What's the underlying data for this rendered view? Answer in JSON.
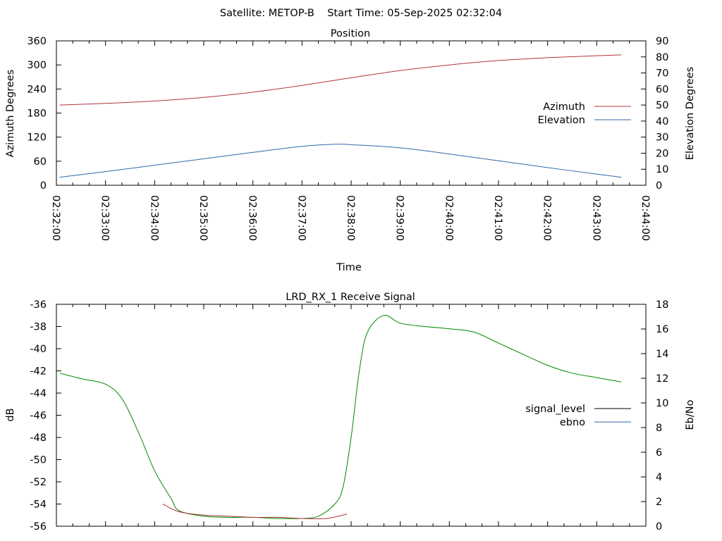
{
  "header": {
    "title": "Satellite: METOP-B    Start Time: 05-Sep-2025 02:32:04"
  },
  "chart_data": [
    {
      "type": "line",
      "title": "Position",
      "xlabel": "Time",
      "ylabel": "Azimuth Degrees",
      "y2label": "Elevation Degrees",
      "x_ticks": [
        "02:32:00",
        "02:33:00",
        "02:34:00",
        "02:35:00",
        "02:36:00",
        "02:37:00",
        "02:38:00",
        "02:39:00",
        "02:40:00",
        "02:41:00",
        "02:42:00",
        "02:43:00",
        "02:44:00"
      ],
      "ylim": [
        0,
        360
      ],
      "y_ticks": [
        "0",
        "60",
        "120",
        "180",
        "240",
        "300",
        "360"
      ],
      "y2lim": [
        0,
        90
      ],
      "y2_ticks": [
        "0",
        "10",
        "20",
        "30",
        "40",
        "50",
        "60",
        "70",
        "80",
        "90"
      ],
      "legend_position": "right",
      "grid": false,
      "series": [
        {
          "name": "Azimuth",
          "axis": "y",
          "color": "#b0343c",
          "x": [
            "02:32:04",
            "02:33:00",
            "02:34:00",
            "02:35:00",
            "02:36:00",
            "02:37:00",
            "02:38:00",
            "02:39:00",
            "02:40:00",
            "02:41:00",
            "02:42:00",
            "02:43:00",
            "02:43:30"
          ],
          "values": [
            200,
            204,
            210,
            219,
            232,
            249,
            268,
            286,
            300,
            311,
            318,
            323,
            325
          ]
        },
        {
          "name": "Elevation",
          "axis": "y2",
          "color": "#2f6aa6",
          "x": [
            "02:32:04",
            "02:33:00",
            "02:34:00",
            "02:35:00",
            "02:36:00",
            "02:37:00",
            "02:37:40",
            "02:38:00",
            "02:39:00",
            "02:40:00",
            "02:41:00",
            "02:42:00",
            "02:43:00",
            "02:43:30"
          ],
          "values": [
            5,
            8.5,
            12.5,
            16.5,
            20.5,
            24.3,
            25.6,
            25.3,
            23.3,
            19.5,
            15.3,
            11,
            7,
            5
          ]
        }
      ]
    },
    {
      "type": "line",
      "title": "LRD_RX_1 Receive Signal",
      "ylabel": "dB",
      "y2label": "Eb/No",
      "ylim": [
        -56,
        -36
      ],
      "y_ticks": [
        "-56",
        "-54",
        "-52",
        "-50",
        "-48",
        "-46",
        "-44",
        "-42",
        "-40",
        "-38",
        "-36"
      ],
      "y2lim": [
        0,
        18
      ],
      "y2_ticks": [
        "0",
        "2",
        "4",
        "6",
        "8",
        "10",
        "12",
        "14",
        "16",
        "18"
      ],
      "legend_position": "right",
      "grid": false,
      "series": [
        {
          "name": "signal_level",
          "axis": "y",
          "color": "#000000"
        },
        {
          "name": "ebno",
          "axis": "y2",
          "color": "#2f6aa6"
        }
      ],
      "lines": [
        {
          "color": "#008800",
          "axis": "y",
          "x": [
            "02:32:04",
            "02:32:30",
            "02:33:00",
            "02:33:20",
            "02:33:40",
            "02:34:00",
            "02:34:20",
            "02:34:30",
            "02:35:00",
            "02:35:30",
            "02:36:00",
            "02:36:30",
            "02:37:00",
            "02:37:20",
            "02:37:40",
            "02:37:50",
            "02:38:00",
            "02:38:10",
            "02:38:20",
            "02:38:40",
            "02:39:00",
            "02:39:30",
            "02:40:00",
            "02:40:30",
            "02:41:00",
            "02:41:30",
            "02:42:00",
            "02:42:30",
            "02:43:00",
            "02:43:30"
          ],
          "values": [
            -42.2,
            -42.7,
            -43.2,
            -44.5,
            -47.5,
            -51,
            -53.5,
            -54.6,
            -55.1,
            -55.2,
            -55.2,
            -55.3,
            -55.3,
            -55.1,
            -54,
            -52.5,
            -48,
            -42,
            -38.5,
            -37,
            -37.7,
            -38,
            -38.2,
            -38.5,
            -39.5,
            -40.5,
            -41.5,
            -42.2,
            -42.6,
            -43
          ]
        },
        {
          "color": "#b0343c",
          "axis": "y",
          "x": [
            "02:34:10",
            "02:34:30",
            "02:35:00",
            "02:35:30",
            "02:36:00",
            "02:36:30",
            "02:37:00",
            "02:37:30",
            "02:37:55"
          ],
          "values": [
            -54,
            -54.7,
            -55,
            -55.1,
            -55.2,
            -55.2,
            -55.3,
            -55.3,
            -54.9
          ]
        }
      ]
    }
  ]
}
